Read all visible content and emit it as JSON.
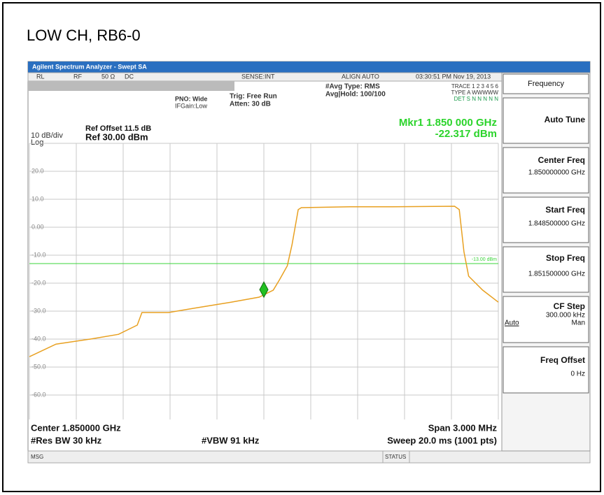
{
  "page_title": "LOW CH, RB6-0",
  "window_title": "Agilent Spectrum Analyzer - Swept SA",
  "status_bar": {
    "rl": "RL",
    "rf": "RF",
    "imp": "50 Ω",
    "dc": "DC",
    "sense": "SENSE:INT",
    "align": "ALIGN AUTO",
    "time": "03:30:51 PM Nov 19, 2013"
  },
  "settings": {
    "pno": "PNO: Wide",
    "ifgain": "IFGain:Low",
    "trig": "Trig: Free Run",
    "atten": "Atten: 30 dB",
    "avg_type": "#Avg Type: RMS",
    "avg_hold": "Avg|Hold: 100/100",
    "trace": "TRACE 1 2 3 4 5 6",
    "type": "TYPE A WWWWW",
    "det": "DET S N N N N N"
  },
  "scale": {
    "div": "10 dB/div",
    "log": "Log",
    "ref_offset": "Ref Offset 11.5 dB",
    "ref": "Ref 30.00 dBm"
  },
  "marker": {
    "label": "Mkr1 1.850 000 GHz",
    "readout": "-22.317 dBm",
    "x": 1.85,
    "value": -22.317
  },
  "display_line": {
    "value": -13,
    "label": "-13.00 dBm"
  },
  "trace": {
    "color": "#e8a020",
    "xlim": [
      1.8485,
      1.8515
    ],
    "ylim": [
      -70,
      30
    ],
    "yticks": [
      {
        "value": 20,
        "label": "20.0"
      },
      {
        "value": 10,
        "label": "10.0"
      },
      {
        "value": 0,
        "label": "0.00"
      },
      {
        "value": -10,
        "label": "-10.0"
      },
      {
        "value": -20,
        "label": "-20.0"
      },
      {
        "value": -30,
        "label": "-30.0"
      },
      {
        "value": -40,
        "label": "-40.0"
      },
      {
        "value": -50,
        "label": "-50.0"
      },
      {
        "value": -60,
        "label": "-60.0"
      }
    ],
    "x": [
      1.8485,
      1.84867,
      1.84889,
      1.84907,
      1.84919,
      1.84922,
      1.84939,
      1.84957,
      1.84979,
      1.84997,
      1.85006,
      1.8501,
      1.85015,
      1.85018,
      1.85022,
      1.85024,
      1.85055,
      1.85082,
      1.85122,
      1.85125,
      1.85128,
      1.85131,
      1.8514,
      1.8515
    ],
    "y": [
      -46.3,
      -41.8,
      -40,
      -38.3,
      -35,
      -30.5,
      -30.5,
      -28.8,
      -26.8,
      -25,
      -22.5,
      -18.8,
      -13.8,
      -6.3,
      6.3,
      7,
      7.3,
      7.3,
      7.5,
      6.3,
      -8.8,
      -17.5,
      -22.5,
      -26.8
    ]
  },
  "footer": {
    "center": "Center 1.850000 GHz",
    "span": "Span 3.000 MHz",
    "rbw": "#Res BW 30 kHz",
    "vbw": "#VBW 91 kHz",
    "sweep": "Sweep  20.0 ms (1001 pts)",
    "msg": "MSG",
    "status": "STATUS"
  },
  "softkeys": {
    "menu": "Frequency",
    "auto_tune": "Auto Tune",
    "center_freq": "Center Freq",
    "center_val": "1.850000000 GHz",
    "start_freq": "Start Freq",
    "start_val": "1.848500000 GHz",
    "stop_freq": "Stop Freq",
    "stop_val": "1.851500000 GHz",
    "cf_step": "CF Step",
    "cf_val": "300.000 kHz",
    "auto": "Auto",
    "man": "Man",
    "freq_offset": "Freq Offset",
    "offset_val": "0 Hz"
  }
}
